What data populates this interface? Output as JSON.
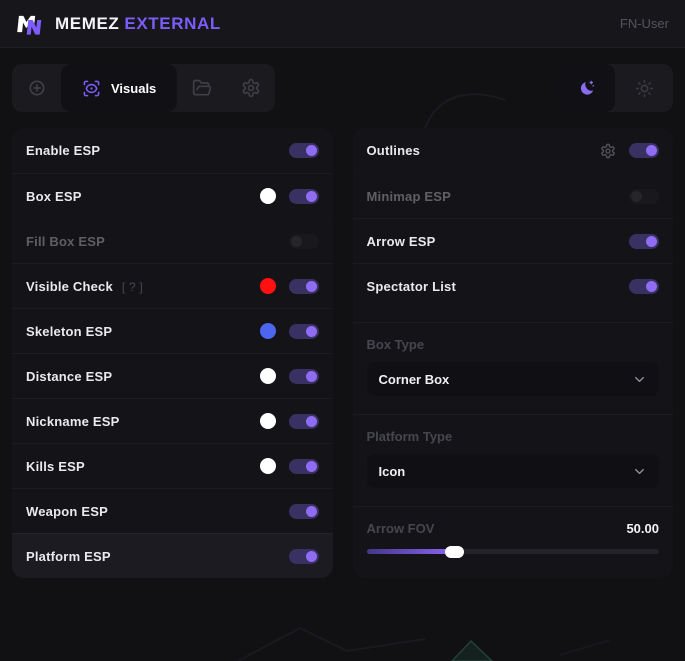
{
  "header": {
    "brand": {
      "primary": "MEMEZ",
      "accent": "EXTERNAL"
    },
    "user_label": "FN-User"
  },
  "toolbar": {
    "tabs": [
      {
        "icon": "crosshair-icon",
        "active": false
      },
      {
        "icon": "scan-eye-icon",
        "label": "Visuals",
        "active": true
      },
      {
        "icon": "folder-icon",
        "active": false
      },
      {
        "icon": "gear-icon",
        "active": false
      }
    ],
    "theme": {
      "active": "dark",
      "options": [
        "dark",
        "light"
      ]
    }
  },
  "left_panel": {
    "rows": [
      {
        "label": "Enable ESP",
        "state": "on"
      },
      {
        "label": "Box ESP",
        "swatch": "white",
        "state": "on"
      },
      {
        "label": "Fill Box ESP",
        "state": "off",
        "disabled": "true"
      },
      {
        "label": "Visible Check",
        "hint": "[ ? ]",
        "swatch": "red",
        "state": "on"
      },
      {
        "label": "Skeleton ESP",
        "swatch": "blue",
        "state": "on"
      },
      {
        "label": "Distance ESP",
        "swatch": "white",
        "state": "on"
      },
      {
        "label": "Nickname ESP",
        "swatch": "white",
        "state": "on"
      },
      {
        "label": "Kills ESP",
        "swatch": "white",
        "state": "on"
      },
      {
        "label": "Weapon ESP",
        "state": "on"
      },
      {
        "label": "Platform ESP",
        "state": "on"
      }
    ]
  },
  "right_panel": {
    "rows": [
      {
        "label": "Outlines",
        "state": "on",
        "has_settings": true
      },
      {
        "label": "Minimap ESP",
        "state": "off",
        "disabled": "true"
      },
      {
        "label": "Arrow ESP",
        "state": "on"
      },
      {
        "label": "Spectator List",
        "state": "on"
      }
    ],
    "box_type": {
      "label": "Box Type",
      "value": "Corner Box"
    },
    "platform_type": {
      "label": "Platform Type",
      "value": "Icon"
    },
    "arrow_fov": {
      "label": "Arrow FOV",
      "value": "50.00",
      "fill_percent": 30
    }
  },
  "colors": {
    "accent": "#7c5cfa",
    "toggle_on_knob": "#8e6df2",
    "swatch_white": "#ffffff",
    "swatch_red": "#ff1111",
    "swatch_blue": "#4d66f0"
  }
}
